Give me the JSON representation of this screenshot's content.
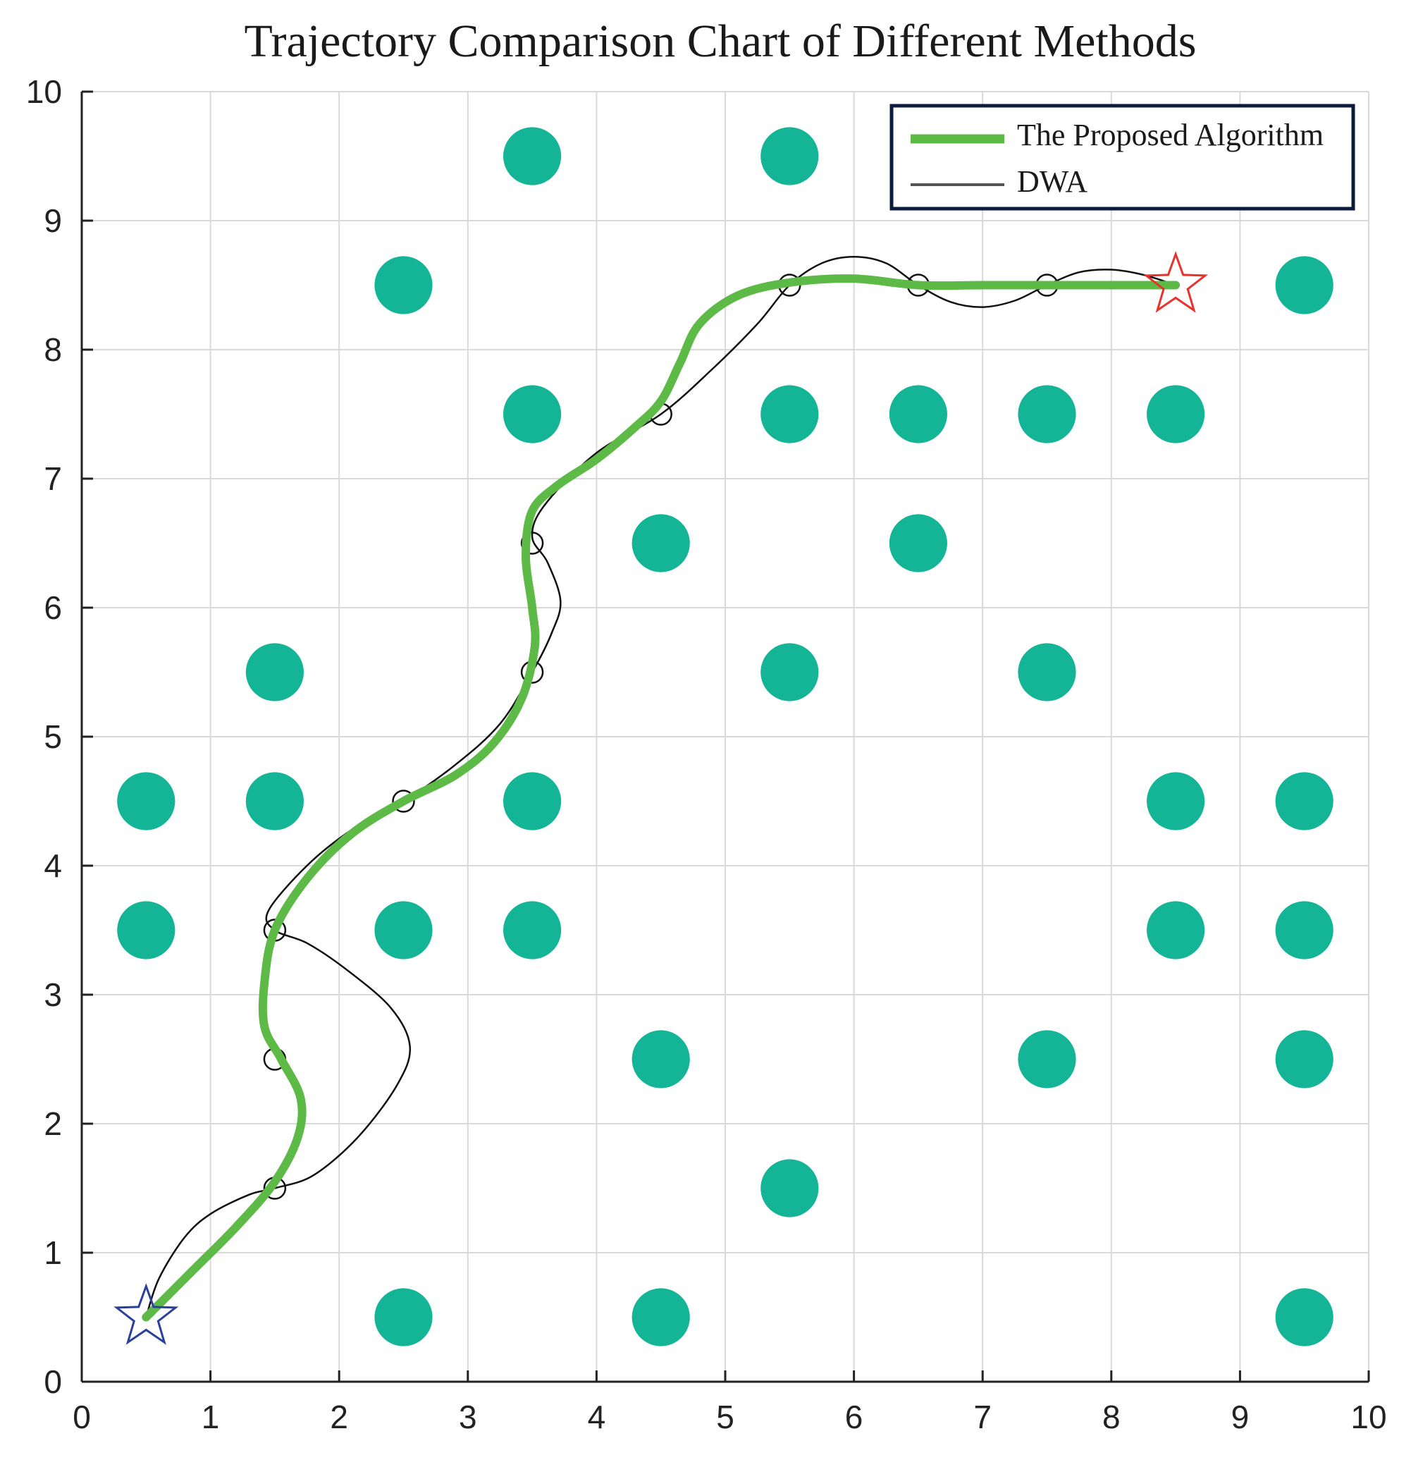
{
  "chart_data": {
    "type": "line",
    "title": "Trajectory Comparison Chart of Different Methods",
    "xlabel": "",
    "ylabel": "",
    "xlim": [
      0,
      10
    ],
    "ylim": [
      0,
      10
    ],
    "xticks": [
      0,
      1,
      2,
      3,
      4,
      5,
      6,
      7,
      8,
      9,
      10
    ],
    "yticks": [
      0,
      1,
      2,
      3,
      4,
      5,
      6,
      7,
      8,
      9,
      10
    ],
    "grid": true,
    "legend_position": "top-right",
    "colors": {
      "proposed": "#5dba47",
      "dwa": "#111111",
      "obstacle": "#14b596",
      "start_star": "#2a3f9e",
      "goal_star": "#e8322b",
      "legend_border": "#0d1b3e"
    },
    "series": [
      {
        "name": "The Proposed Algorithm",
        "x": [
          0.5,
          0.85,
          1.2,
          1.5,
          1.68,
          1.7,
          1.55,
          1.42,
          1.42,
          1.5,
          1.75,
          2.1,
          2.5,
          2.9,
          3.2,
          3.42,
          3.52,
          3.5,
          3.45,
          3.5,
          3.7,
          4.0,
          4.3,
          4.5,
          4.65,
          4.8,
          5.1,
          5.5,
          6.0,
          6.5,
          7.0,
          7.5,
          8.0,
          8.5
        ],
        "y": [
          0.5,
          0.85,
          1.2,
          1.55,
          1.9,
          2.2,
          2.5,
          2.75,
          3.1,
          3.5,
          3.9,
          4.25,
          4.5,
          4.7,
          4.95,
          5.3,
          5.7,
          6.0,
          6.4,
          6.75,
          6.95,
          7.15,
          7.4,
          7.6,
          7.9,
          8.2,
          8.42,
          8.52,
          8.55,
          8.5,
          8.5,
          8.5,
          8.5,
          8.5
        ]
      },
      {
        "name": "DWA",
        "x": [
          0.5,
          0.6,
          0.8,
          1.0,
          1.3,
          1.5,
          1.8,
          2.15,
          2.45,
          2.55,
          2.4,
          2.05,
          1.75,
          1.5,
          1.45,
          1.75,
          2.1,
          2.5,
          2.9,
          3.25,
          3.5,
          3.65,
          3.72,
          3.62,
          3.5,
          3.6,
          4.0,
          4.5,
          4.9,
          5.25,
          5.5,
          5.75,
          6.0,
          6.25,
          6.5,
          6.75,
          7.0,
          7.25,
          7.5,
          7.75,
          8.0,
          8.25,
          8.5
        ],
        "y": [
          0.5,
          0.8,
          1.12,
          1.3,
          1.45,
          1.5,
          1.6,
          1.9,
          2.3,
          2.6,
          2.9,
          3.2,
          3.4,
          3.5,
          3.65,
          4.0,
          4.28,
          4.5,
          4.78,
          5.1,
          5.5,
          5.8,
          6.05,
          6.35,
          6.55,
          6.8,
          7.2,
          7.5,
          7.85,
          8.2,
          8.5,
          8.67,
          8.72,
          8.67,
          8.5,
          8.37,
          8.33,
          8.38,
          8.5,
          8.6,
          8.62,
          8.58,
          8.5
        ]
      }
    ],
    "dwa_waypoints": {
      "x": [
        1.5,
        1.5,
        1.5,
        2.5,
        3.5,
        3.5,
        4.5,
        5.5,
        6.5,
        7.5
      ],
      "y": [
        1.5,
        2.5,
        3.5,
        4.5,
        5.5,
        6.5,
        7.5,
        8.5,
        8.5,
        8.5
      ]
    },
    "start": {
      "x": 0.5,
      "y": 0.5
    },
    "goal": {
      "x": 8.5,
      "y": 8.5
    },
    "obstacles": {
      "x": [
        3.5,
        5.5,
        2.5,
        9.5,
        3.5,
        5.5,
        6.5,
        7.5,
        8.5,
        4.5,
        6.5,
        1.5,
        5.5,
        7.5,
        0.5,
        1.5,
        3.5,
        8.5,
        9.5,
        0.5,
        2.5,
        3.5,
        8.5,
        9.5,
        4.5,
        7.5,
        9.5,
        5.5,
        2.5,
        4.5,
        9.5
      ],
      "y": [
        9.5,
        9.5,
        8.5,
        8.5,
        7.5,
        7.5,
        7.5,
        7.5,
        7.5,
        6.5,
        6.5,
        5.5,
        5.5,
        5.5,
        4.5,
        4.5,
        4.5,
        4.5,
        4.5,
        3.5,
        3.5,
        3.5,
        3.5,
        3.5,
        2.5,
        2.5,
        2.5,
        1.5,
        0.5,
        0.5,
        0.5
      ]
    }
  }
}
